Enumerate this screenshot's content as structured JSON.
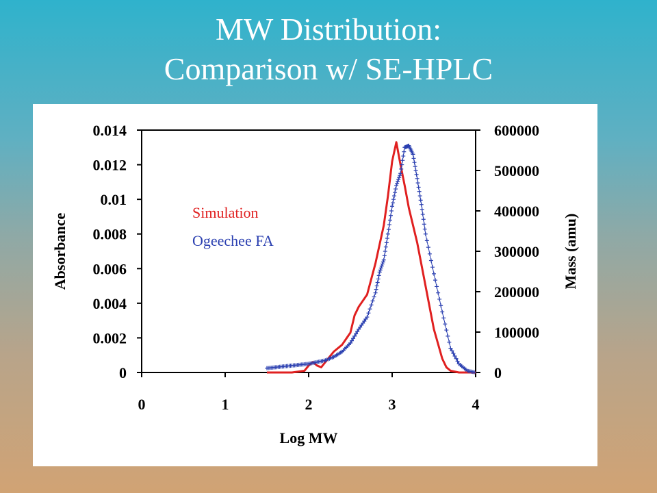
{
  "slide": {
    "title_line1": "MW Distribution:",
    "title_line2": "Comparison w/ SE-HPLC"
  },
  "chart_data": {
    "type": "line",
    "xlabel": "Log MW",
    "ylabel": "Absorbance",
    "y2label": "Mass (amu)",
    "xlim": [
      0,
      4
    ],
    "ylim": [
      0,
      0.014
    ],
    "y2lim": [
      0,
      600000
    ],
    "xticks": [
      "0",
      "1",
      "2",
      "3",
      "4"
    ],
    "yticks": [
      "0",
      "0.002",
      "0.004",
      "0.006",
      "0.008",
      "0.01",
      "0.012",
      "0.014"
    ],
    "y2ticks": [
      "0",
      "100000",
      "200000",
      "300000",
      "400000",
      "500000",
      "600000"
    ],
    "grid": false,
    "legend_position": "upper-left",
    "series": [
      {
        "name": "Simulation",
        "color": "#e02020",
        "marker": "line",
        "x": [
          1.5,
          1.8,
          1.95,
          2.0,
          2.05,
          2.1,
          2.15,
          2.2,
          2.25,
          2.3,
          2.4,
          2.5,
          2.55,
          2.6,
          2.7,
          2.8,
          2.9,
          2.95,
          3.0,
          3.05,
          3.1,
          3.15,
          3.2,
          3.3,
          3.4,
          3.5,
          3.6,
          3.65,
          3.7,
          3.8,
          3.9,
          4.0
        ],
        "y": [
          0,
          0,
          0.0001,
          0.0004,
          0.0006,
          0.0004,
          0.0003,
          0.0006,
          0.0009,
          0.0012,
          0.0016,
          0.0023,
          0.0033,
          0.0038,
          0.0045,
          0.0063,
          0.0085,
          0.0102,
          0.0122,
          0.0133,
          0.012,
          0.0108,
          0.0095,
          0.0075,
          0.005,
          0.0025,
          0.0008,
          0.0003,
          0.0001,
          0,
          0,
          0
        ]
      },
      {
        "name": "Ogeechee FA",
        "color": "#2a3fb0",
        "marker": "plus",
        "x": [
          1.5,
          1.6,
          1.7,
          1.8,
          1.9,
          2.0,
          2.1,
          2.2,
          2.3,
          2.4,
          2.5,
          2.6,
          2.7,
          2.8,
          2.85,
          2.9,
          2.95,
          3.0,
          3.05,
          3.1,
          3.15,
          3.2,
          3.25,
          3.3,
          3.35,
          3.4,
          3.5,
          3.6,
          3.7,
          3.8,
          3.9,
          4.0
        ],
        "y": [
          0.00025,
          0.0003,
          0.00035,
          0.0004,
          0.00045,
          0.0005,
          0.0006,
          0.0007,
          0.0009,
          0.0012,
          0.0017,
          0.0025,
          0.0032,
          0.0046,
          0.0058,
          0.0065,
          0.008,
          0.0096,
          0.0108,
          0.0115,
          0.013,
          0.0131,
          0.0126,
          0.0112,
          0.0097,
          0.008,
          0.0057,
          0.0035,
          0.0014,
          0.0005,
          0.0001,
          0
        ]
      }
    ]
  }
}
